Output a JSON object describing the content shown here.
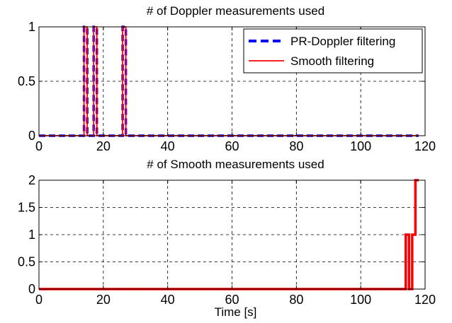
{
  "chart_data": [
    {
      "type": "line",
      "title": "# of Doppler measurements used",
      "xlabel": "",
      "ylabel": "",
      "xlim": [
        0,
        120
      ],
      "ylim": [
        0,
        1
      ],
      "xticks": [
        0,
        20,
        40,
        60,
        80,
        100,
        120
      ],
      "yticks": [
        0,
        0.5,
        1
      ],
      "ytick_labels": [
        "0",
        "0.5",
        "1"
      ],
      "grid": true,
      "legend_position": "top-right",
      "series": [
        {
          "name": "PR-Doppler filtering",
          "color": "#0000ff",
          "style": "dashed",
          "x": [
            0,
            14,
            14,
            15,
            15,
            17,
            17,
            18,
            18,
            26,
            26,
            27,
            27,
            118
          ],
          "y": [
            0,
            0,
            1,
            1,
            0,
            0,
            1,
            1,
            0,
            0,
            1,
            1,
            0,
            0
          ]
        },
        {
          "name": "Smooth filtering",
          "color": "#ff0000",
          "style": "solid",
          "x": [
            0,
            14,
            14,
            15,
            15,
            17,
            17,
            18,
            18,
            26,
            26,
            27,
            27,
            118
          ],
          "y": [
            0,
            0,
            1,
            1,
            0,
            0,
            1,
            1,
            0,
            0,
            1,
            1,
            0,
            0
          ]
        }
      ]
    },
    {
      "type": "line",
      "title": "# of Smooth measurements used",
      "xlabel": "Time [s]",
      "ylabel": "",
      "xlim": [
        0,
        120
      ],
      "ylim": [
        0,
        2
      ],
      "xticks": [
        0,
        20,
        40,
        60,
        80,
        100,
        120
      ],
      "yticks": [
        0,
        0.5,
        1,
        1.5,
        2
      ],
      "ytick_labels": [
        "0",
        "0.5",
        "1",
        "1.5",
        "2"
      ],
      "grid": true,
      "series": [
        {
          "color": "#ff0000",
          "style": "solid",
          "x": [
            0,
            114,
            114,
            115,
            115,
            116,
            116,
            117,
            117,
            118
          ],
          "y": [
            0,
            0,
            1,
            1,
            0,
            0,
            1,
            1,
            2,
            2
          ]
        }
      ]
    }
  ]
}
